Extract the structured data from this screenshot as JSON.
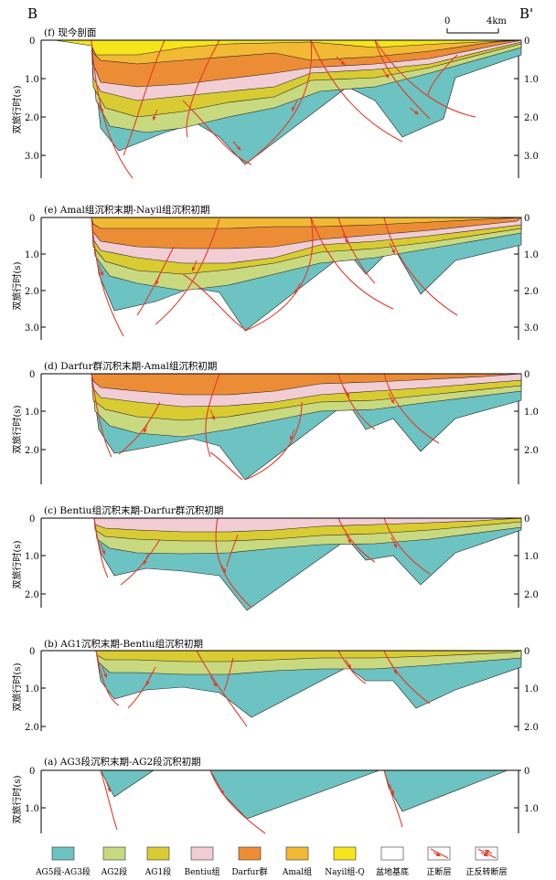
{
  "profile": {
    "start_label": "B",
    "end_label": "B'",
    "scale_zero": "0",
    "scale_end": "4km",
    "y_axis_title": "双旅行时(s)"
  },
  "panels": [
    {
      "id": "f",
      "caption": "(f) 现今剖面",
      "ticks": [
        "0",
        "1.0",
        "2.0",
        "3.0"
      ]
    },
    {
      "id": "e",
      "caption": "(e) Amal组沉积末期-Nayil组沉积初期",
      "ticks": [
        "0",
        "1.0",
        "2.0",
        "3.0"
      ]
    },
    {
      "id": "d",
      "caption": "(d) Darfur群沉积末期-Amal组沉积初期",
      "ticks": [
        "0",
        "1.0",
        "2.0"
      ]
    },
    {
      "id": "c",
      "caption": "(c) Bentiu组沉积末期-Darfur群沉积初期",
      "ticks": [
        "0",
        "1.0",
        "2.0"
      ]
    },
    {
      "id": "b",
      "caption": "(b) AG1沉积末期-Bentiu组沉积初期",
      "ticks": [
        "0",
        "1.0",
        "2.0"
      ]
    },
    {
      "id": "a",
      "caption": "(a) AG3段沉积末期-AG2段沉积初期",
      "ticks": [
        "0",
        "1.0"
      ]
    }
  ],
  "legend": [
    {
      "label": "AG5段-AG3段",
      "color": "#6cc3c1"
    },
    {
      "label": "AG2段",
      "color": "#c9d97f"
    },
    {
      "label": "AG1段",
      "color": "#d9cc33"
    },
    {
      "label": "Bentiu组",
      "color": "#f2cdd3"
    },
    {
      "label": "Darfur群",
      "color": "#ec8d35"
    },
    {
      "label": "Amal组",
      "color": "#f2b935"
    },
    {
      "label": "Nayil组-Q",
      "color": "#f6e51c"
    },
    {
      "label": "盆地基底",
      "color": "#ffffff"
    },
    {
      "label": "正断层",
      "color": "#e23a2a"
    },
    {
      "label": "正反转断层",
      "color": "#e23a2a"
    }
  ]
}
